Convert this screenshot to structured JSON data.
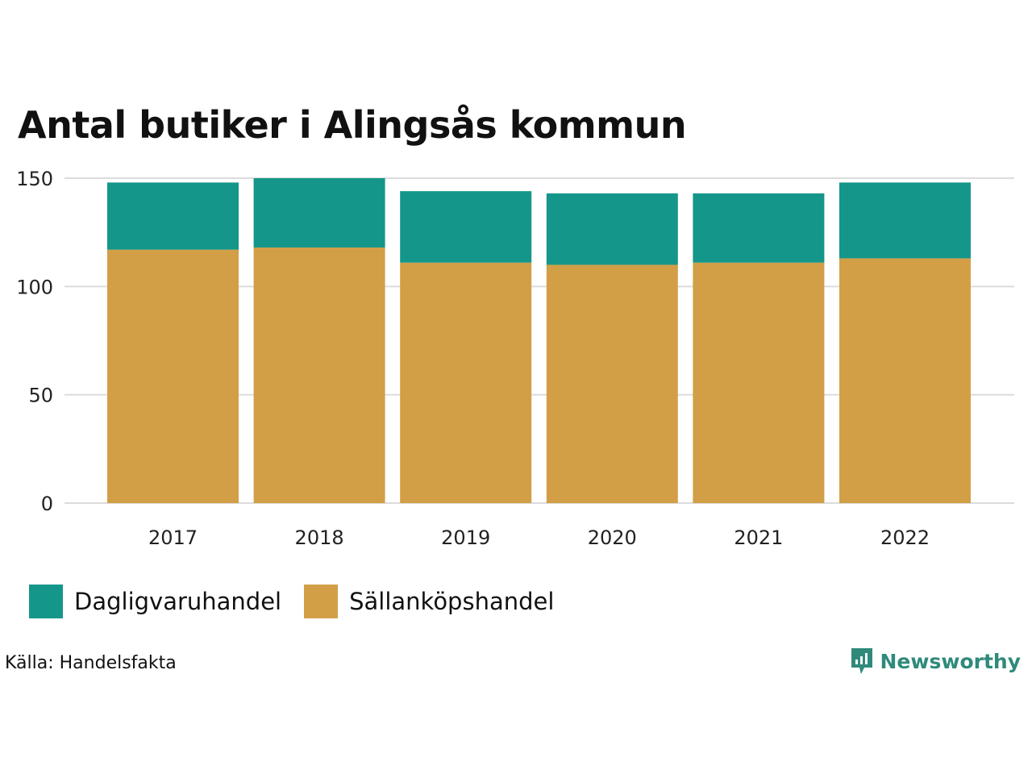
{
  "title": "Antal butiker i Alingsås kommun",
  "source": "Källa: Handelsfakta",
  "brand": {
    "name": "Newsworthy",
    "color": "#2f8a7b",
    "icon": "newsworthy-logo-icon"
  },
  "chart_data": {
    "type": "bar",
    "stacked": true,
    "categories": [
      "2017",
      "2018",
      "2019",
      "2020",
      "2021",
      "2022"
    ],
    "series": [
      {
        "name": "Sällanköpshandel",
        "color": "#d29f47",
        "values": [
          117,
          118,
          111,
          110,
          111,
          113
        ]
      },
      {
        "name": "Dagligvaruhandel",
        "color": "#15968a",
        "values": [
          31,
          32,
          33,
          33,
          32,
          35
        ]
      }
    ],
    "ylim": [
      0,
      150
    ],
    "yticks": [
      0,
      50,
      100,
      150
    ],
    "grid": true,
    "legend_position": "bottom-left",
    "xlabel": "",
    "ylabel": ""
  }
}
